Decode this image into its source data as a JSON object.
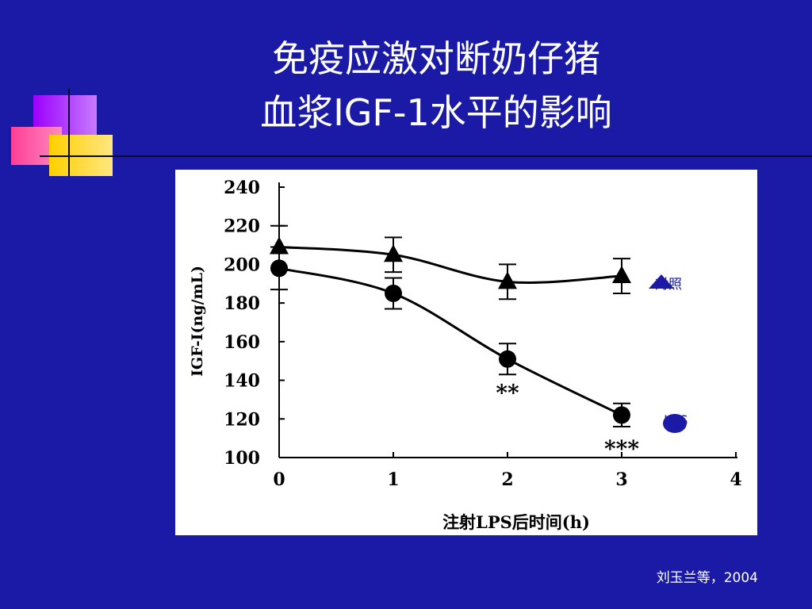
{
  "slide": {
    "title_line1": "免疫应激对断奶仔猪",
    "title_line2": "血浆IGF-1水平的影响",
    "citation": "刘玉兰等，2004"
  },
  "legend": {
    "control_label": "对照",
    "lps_label": "LPS"
  },
  "colors": {
    "background": "#1a1aa6",
    "accent_purple": "#9b00ff",
    "accent_pink": "#ff3e96",
    "accent_yellow": "#ffd000",
    "legend_marker": "#1a1aa6"
  },
  "chart_data": {
    "type": "line",
    "xlabel": "注射LPS后时间(h)",
    "ylabel": "IGF-I(ng/mL)",
    "xlim": [
      0,
      4
    ],
    "ylim": [
      100,
      240
    ],
    "x_ticks": [
      0,
      1,
      2,
      3,
      4
    ],
    "y_ticks": [
      100,
      120,
      140,
      160,
      180,
      200,
      220,
      240
    ],
    "series": [
      {
        "marker": "triangle",
        "x": [
          0,
          1,
          2,
          3
        ],
        "values": [
          209,
          205,
          191,
          194
        ],
        "error": [
          11,
          9,
          9,
          9
        ]
      },
      {
        "marker": "circle",
        "x": [
          0,
          1,
          2,
          3
        ],
        "values": [
          198,
          185,
          151,
          122
        ],
        "error": [
          11,
          8,
          8,
          6
        ]
      }
    ],
    "annotations": [
      {
        "x": 2,
        "y": 151,
        "text": "**"
      },
      {
        "x": 3,
        "y": 122,
        "text": "***"
      }
    ]
  }
}
